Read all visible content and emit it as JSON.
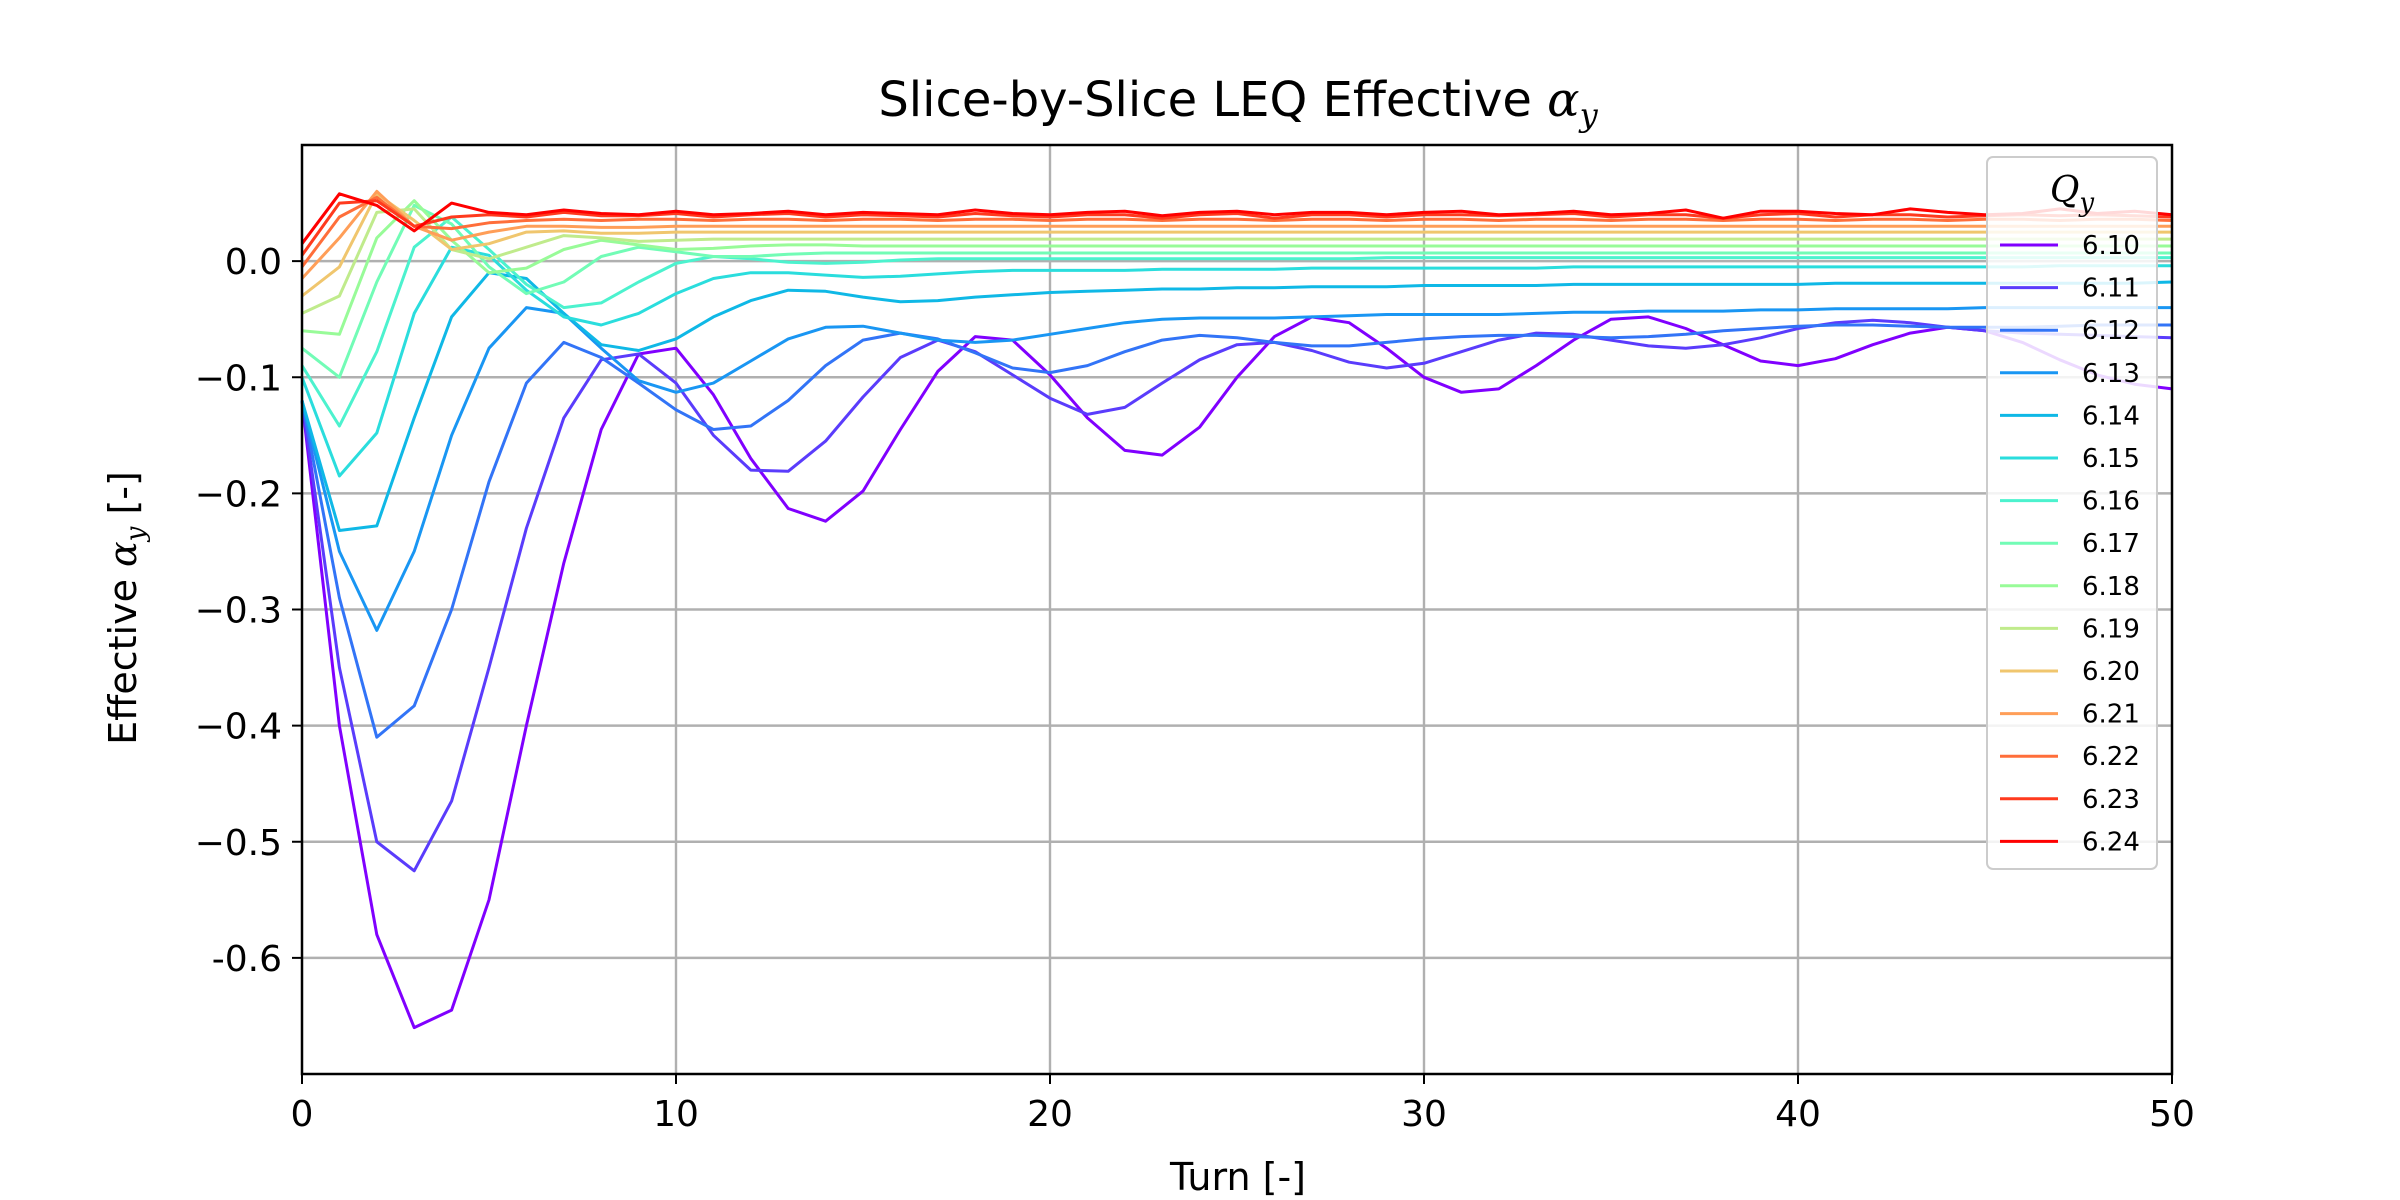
{
  "chart_data": {
    "type": "line",
    "title_main": "Slice-by-Slice LEQ Effective ",
    "title_symbol": "α",
    "title_sub": "y",
    "xlabel": "Turn [-]",
    "ylabel_main": "Effective ",
    "ylabel_symbol": "α",
    "ylabel_sub": "y",
    "ylabel_unit": " [-]",
    "xlim": [
      0,
      50
    ],
    "ylim": [
      -0.7,
      0.1
    ],
    "xticks": [
      0,
      10,
      20,
      30,
      40,
      50
    ],
    "xtick_labels": [
      "0",
      "10",
      "20",
      "30",
      "40",
      "50"
    ],
    "yticks": [
      0.0,
      -0.1,
      -0.2,
      -0.3,
      -0.4,
      -0.5,
      -0.6
    ],
    "ytick_labels": [
      "0.0",
      "−0.1",
      "−0.2",
      "−0.3",
      "−0.4",
      "−0.5",
      "-0.6"
    ],
    "grid": true,
    "legend": {
      "title_symbol": "Q",
      "title_sub": "y",
      "placement": "top-right"
    },
    "x": [
      0,
      1,
      2,
      3,
      4,
      5,
      6,
      7,
      8,
      9,
      10,
      11,
      12,
      13,
      14,
      15,
      16,
      17,
      18,
      19,
      20,
      21,
      22,
      23,
      24,
      25,
      26,
      27,
      28,
      29,
      30,
      31,
      32,
      33,
      34,
      35,
      36,
      37,
      38,
      39,
      40,
      41,
      42,
      43,
      44,
      45,
      46,
      47,
      48,
      49,
      50
    ],
    "series": [
      {
        "name": "6.10",
        "color": "#8000ff",
        "values": [
          -0.12,
          -0.4,
          -0.58,
          -0.66,
          -0.645,
          -0.55,
          -0.4,
          -0.26,
          -0.145,
          -0.08,
          -0.075,
          -0.115,
          -0.17,
          -0.213,
          -0.224,
          -0.198,
          -0.145,
          -0.095,
          -0.065,
          -0.068,
          -0.098,
          -0.135,
          -0.163,
          -0.167,
          -0.143,
          -0.1,
          -0.065,
          -0.048,
          -0.053,
          -0.075,
          -0.1,
          -0.113,
          -0.11,
          -0.09,
          -0.068,
          -0.05,
          -0.048,
          -0.058,
          -0.072,
          -0.086,
          -0.09,
          -0.084,
          -0.072,
          -0.062,
          -0.057,
          -0.06,
          -0.07,
          -0.085,
          -0.098,
          -0.106,
          -0.11
        ]
      },
      {
        "name": "6.11",
        "color": "#5a3cfc",
        "values": [
          -0.12,
          -0.35,
          -0.5,
          -0.525,
          -0.465,
          -0.35,
          -0.23,
          -0.135,
          -0.085,
          -0.08,
          -0.105,
          -0.15,
          -0.18,
          -0.181,
          -0.155,
          -0.117,
          -0.083,
          -0.068,
          -0.078,
          -0.098,
          -0.118,
          -0.132,
          -0.126,
          -0.105,
          -0.085,
          -0.072,
          -0.07,
          -0.077,
          -0.087,
          -0.092,
          -0.088,
          -0.078,
          -0.068,
          -0.062,
          -0.063,
          -0.068,
          -0.073,
          -0.075,
          -0.072,
          -0.066,
          -0.058,
          -0.053,
          -0.051,
          -0.053,
          -0.057,
          -0.06,
          -0.062,
          -0.063,
          -0.064,
          -0.065,
          -0.066
        ]
      },
      {
        "name": "6.12",
        "color": "#3274f7",
        "values": [
          -0.12,
          -0.29,
          -0.41,
          -0.383,
          -0.3,
          -0.19,
          -0.105,
          -0.07,
          -0.083,
          -0.105,
          -0.128,
          -0.145,
          -0.142,
          -0.12,
          -0.09,
          -0.068,
          -0.062,
          -0.067,
          -0.079,
          -0.092,
          -0.096,
          -0.09,
          -0.078,
          -0.068,
          -0.064,
          -0.066,
          -0.07,
          -0.073,
          -0.073,
          -0.07,
          -0.067,
          -0.065,
          -0.064,
          -0.064,
          -0.065,
          -0.066,
          -0.065,
          -0.063,
          -0.06,
          -0.058,
          -0.056,
          -0.055,
          -0.055,
          -0.056,
          -0.057,
          -0.057,
          -0.057,
          -0.056,
          -0.055,
          -0.055,
          -0.055
        ]
      },
      {
        "name": "6.13",
        "color": "#1996f3",
        "values": [
          -0.12,
          -0.25,
          -0.318,
          -0.25,
          -0.15,
          -0.075,
          -0.04,
          -0.045,
          -0.075,
          -0.103,
          -0.113,
          -0.105,
          -0.086,
          -0.067,
          -0.057,
          -0.056,
          -0.062,
          -0.068,
          -0.07,
          -0.068,
          -0.063,
          -0.058,
          -0.053,
          -0.05,
          -0.049,
          -0.049,
          -0.049,
          -0.048,
          -0.047,
          -0.046,
          -0.046,
          -0.046,
          -0.046,
          -0.045,
          -0.044,
          -0.044,
          -0.043,
          -0.043,
          -0.043,
          -0.042,
          -0.042,
          -0.041,
          -0.041,
          -0.041,
          -0.041,
          -0.04,
          -0.04,
          -0.04,
          -0.04,
          -0.04,
          -0.04
        ]
      },
      {
        "name": "6.14",
        "color": "#0fb8e6",
        "values": [
          -0.12,
          -0.232,
          -0.228,
          -0.135,
          -0.048,
          -0.01,
          -0.015,
          -0.045,
          -0.072,
          -0.077,
          -0.067,
          -0.048,
          -0.034,
          -0.025,
          -0.026,
          -0.031,
          -0.035,
          -0.034,
          -0.031,
          -0.029,
          -0.027,
          -0.026,
          -0.025,
          -0.024,
          -0.024,
          -0.023,
          -0.023,
          -0.022,
          -0.022,
          -0.022,
          -0.021,
          -0.021,
          -0.021,
          -0.021,
          -0.02,
          -0.02,
          -0.02,
          -0.02,
          -0.02,
          -0.02,
          -0.02,
          -0.019,
          -0.019,
          -0.019,
          -0.019,
          -0.019,
          -0.019,
          -0.019,
          -0.019,
          -0.019,
          -0.018
        ]
      },
      {
        "name": "6.15",
        "color": "#2adddd",
        "values": [
          -0.1,
          -0.185,
          -0.148,
          -0.045,
          0.012,
          0.005,
          -0.025,
          -0.048,
          -0.055,
          -0.045,
          -0.028,
          -0.015,
          -0.01,
          -0.01,
          -0.012,
          -0.014,
          -0.013,
          -0.011,
          -0.009,
          -0.008,
          -0.008,
          -0.008,
          -0.008,
          -0.007,
          -0.007,
          -0.007,
          -0.007,
          -0.006,
          -0.006,
          -0.006,
          -0.006,
          -0.006,
          -0.006,
          -0.006,
          -0.005,
          -0.005,
          -0.005,
          -0.005,
          -0.005,
          -0.005,
          -0.005,
          -0.005,
          -0.005,
          -0.005,
          -0.005,
          -0.005,
          -0.005,
          -0.004,
          -0.004,
          -0.004,
          -0.004
        ]
      },
      {
        "name": "6.16",
        "color": "#4cf2ce",
        "values": [
          -0.09,
          -0.142,
          -0.078,
          0.012,
          0.038,
          0.01,
          -0.02,
          -0.04,
          -0.036,
          -0.018,
          -0.002,
          0.004,
          0.002,
          -0.001,
          -0.002,
          -0.001,
          0.001,
          0.002,
          0.002,
          0.002,
          0.002,
          0.002,
          0.002,
          0.002,
          0.002,
          0.002,
          0.002,
          0.002,
          0.002,
          0.003,
          0.003,
          0.003,
          0.003,
          0.003,
          0.003,
          0.003,
          0.003,
          0.003,
          0.003,
          0.003,
          0.003,
          0.003,
          0.003,
          0.003,
          0.003,
          0.003,
          0.003,
          0.003,
          0.003,
          0.003,
          0.003
        ]
      },
      {
        "name": "6.17",
        "color": "#72fcb6",
        "values": [
          -0.075,
          -0.1,
          -0.018,
          0.048,
          0.032,
          -0.005,
          -0.028,
          -0.018,
          0.004,
          0.012,
          0.008,
          0.004,
          0.004,
          0.006,
          0.007,
          0.007,
          0.007,
          0.007,
          0.007,
          0.007,
          0.007,
          0.007,
          0.007,
          0.007,
          0.007,
          0.007,
          0.007,
          0.007,
          0.007,
          0.007,
          0.007,
          0.007,
          0.007,
          0.007,
          0.007,
          0.007,
          0.007,
          0.007,
          0.007,
          0.007,
          0.007,
          0.007,
          0.007,
          0.007,
          0.007,
          0.007,
          0.007,
          0.007,
          0.007,
          0.007,
          0.007
        ]
      },
      {
        "name": "6.18",
        "color": "#98fb98",
        "values": [
          -0.06,
          -0.063,
          0.02,
          0.052,
          0.018,
          -0.01,
          -0.006,
          0.01,
          0.018,
          0.014,
          0.01,
          0.011,
          0.013,
          0.014,
          0.014,
          0.013,
          0.013,
          0.013,
          0.013,
          0.013,
          0.013,
          0.013,
          0.013,
          0.013,
          0.013,
          0.013,
          0.013,
          0.013,
          0.013,
          0.013,
          0.013,
          0.013,
          0.013,
          0.013,
          0.013,
          0.013,
          0.013,
          0.013,
          0.013,
          0.013,
          0.013,
          0.013,
          0.013,
          0.013,
          0.013,
          0.013,
          0.013,
          0.013,
          0.013,
          0.013,
          0.013
        ]
      },
      {
        "name": "6.19",
        "color": "#c0eb8c",
        "values": [
          -0.045,
          -0.03,
          0.042,
          0.045,
          0.01,
          0.002,
          0.012,
          0.022,
          0.02,
          0.017,
          0.018,
          0.019,
          0.019,
          0.019,
          0.019,
          0.019,
          0.019,
          0.019,
          0.019,
          0.019,
          0.019,
          0.019,
          0.019,
          0.019,
          0.019,
          0.019,
          0.019,
          0.019,
          0.019,
          0.019,
          0.019,
          0.019,
          0.019,
          0.019,
          0.019,
          0.019,
          0.019,
          0.019,
          0.019,
          0.019,
          0.019,
          0.019,
          0.019,
          0.019,
          0.019,
          0.019,
          0.019,
          0.019,
          0.019,
          0.019,
          0.019
        ]
      },
      {
        "name": "6.20",
        "color": "#f0c66e",
        "values": [
          -0.03,
          -0.005,
          0.058,
          0.035,
          0.01,
          0.015,
          0.025,
          0.026,
          0.024,
          0.024,
          0.025,
          0.025,
          0.025,
          0.025,
          0.025,
          0.025,
          0.025,
          0.025,
          0.025,
          0.025,
          0.025,
          0.025,
          0.025,
          0.025,
          0.025,
          0.025,
          0.025,
          0.025,
          0.025,
          0.025,
          0.025,
          0.025,
          0.025,
          0.025,
          0.025,
          0.025,
          0.025,
          0.025,
          0.025,
          0.025,
          0.025,
          0.025,
          0.025,
          0.025,
          0.025,
          0.025,
          0.025,
          0.025,
          0.025,
          0.025,
          0.025
        ]
      },
      {
        "name": "6.21",
        "color": "#ff9e58",
        "values": [
          -0.015,
          0.02,
          0.06,
          0.03,
          0.018,
          0.025,
          0.03,
          0.03,
          0.029,
          0.029,
          0.03,
          0.03,
          0.03,
          0.03,
          0.03,
          0.03,
          0.03,
          0.03,
          0.03,
          0.03,
          0.03,
          0.03,
          0.03,
          0.03,
          0.03,
          0.03,
          0.03,
          0.03,
          0.03,
          0.03,
          0.03,
          0.03,
          0.03,
          0.03,
          0.03,
          0.03,
          0.03,
          0.03,
          0.03,
          0.03,
          0.03,
          0.03,
          0.03,
          0.03,
          0.03,
          0.03,
          0.03,
          0.03,
          0.03,
          0.03,
          0.03
        ]
      },
      {
        "name": "6.22",
        "color": "#ff6e3a",
        "values": [
          -0.005,
          0.038,
          0.055,
          0.03,
          0.028,
          0.033,
          0.035,
          0.036,
          0.035,
          0.036,
          0.036,
          0.035,
          0.036,
          0.036,
          0.035,
          0.036,
          0.036,
          0.035,
          0.036,
          0.036,
          0.035,
          0.036,
          0.036,
          0.035,
          0.036,
          0.036,
          0.035,
          0.036,
          0.036,
          0.035,
          0.036,
          0.036,
          0.035,
          0.036,
          0.036,
          0.035,
          0.036,
          0.036,
          0.035,
          0.036,
          0.036,
          0.035,
          0.036,
          0.036,
          0.035,
          0.036,
          0.036,
          0.035,
          0.036,
          0.036,
          0.035
        ]
      },
      {
        "name": "6.23",
        "color": "#ff3a1e",
        "values": [
          0.005,
          0.05,
          0.052,
          0.03,
          0.038,
          0.04,
          0.038,
          0.042,
          0.039,
          0.039,
          0.041,
          0.038,
          0.04,
          0.041,
          0.038,
          0.04,
          0.039,
          0.038,
          0.041,
          0.039,
          0.038,
          0.04,
          0.04,
          0.037,
          0.04,
          0.041,
          0.037,
          0.04,
          0.04,
          0.038,
          0.04,
          0.04,
          0.039,
          0.04,
          0.041,
          0.038,
          0.04,
          0.04,
          0.037,
          0.04,
          0.041,
          0.038,
          0.04,
          0.04,
          0.038,
          0.039,
          0.04,
          0.039,
          0.04,
          0.039,
          0.038
        ]
      },
      {
        "name": "6.24",
        "color": "#ff0000",
        "values": [
          0.015,
          0.058,
          0.048,
          0.026,
          0.05,
          0.042,
          0.04,
          0.044,
          0.041,
          0.04,
          0.043,
          0.04,
          0.041,
          0.043,
          0.04,
          0.042,
          0.041,
          0.04,
          0.044,
          0.041,
          0.04,
          0.042,
          0.043,
          0.039,
          0.042,
          0.043,
          0.04,
          0.042,
          0.042,
          0.04,
          0.042,
          0.043,
          0.04,
          0.041,
          0.043,
          0.04,
          0.041,
          0.044,
          0.037,
          0.043,
          0.043,
          0.041,
          0.04,
          0.045,
          0.042,
          0.04,
          0.041,
          0.045,
          0.041,
          0.043,
          0.04
        ]
      }
    ]
  }
}
